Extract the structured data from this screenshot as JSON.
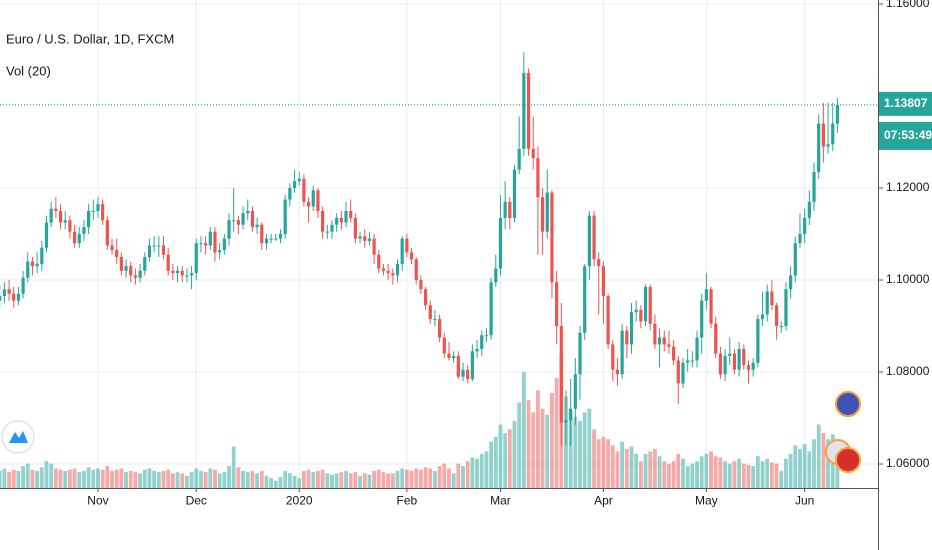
{
  "chart_data": {
    "type": "candlestick",
    "title": "Euro / U.S. Dollar, 1D, FXCM",
    "indicator": "Vol (20)",
    "up_color": "#26a69a",
    "down_color": "#ef5350",
    "grid": true,
    "ylim": [
      1.05478,
      1.16087
    ],
    "yticks": [
      {
        "value": 1.16,
        "label": "1.16000"
      },
      {
        "value": 1.12,
        "label": "1.12000"
      },
      {
        "value": 1.1,
        "label": "1.10000"
      },
      {
        "value": 1.08,
        "label": "1.08000"
      },
      {
        "value": 1.06,
        "label": "1.06000"
      }
    ],
    "xticks": [
      {
        "value": 21,
        "label": "Nov"
      },
      {
        "value": 42,
        "label": "Dec"
      },
      {
        "value": 64,
        "label": "2020"
      },
      {
        "value": 87,
        "label": "Feb"
      },
      {
        "value": 107,
        "label": "Mar"
      },
      {
        "value": 129,
        "label": "Apr"
      },
      {
        "value": 151,
        "label": "May"
      },
      {
        "value": 172,
        "label": "Jun"
      }
    ],
    "last_price": {
      "value": 1.13807,
      "label": "1.13807"
    },
    "countdown": "07:53:49",
    "volume_ylim": [
      0,
      400
    ],
    "candles": [
      [
        1.0955,
        1.099,
        1.094,
        1.0965
      ],
      [
        1.0965,
        1.0995,
        1.095,
        1.098
      ],
      [
        1.098,
        1.1,
        1.0955,
        1.097
      ],
      [
        1.097,
        1.0985,
        1.094,
        1.0955
      ],
      [
        1.0955,
        1.0985,
        1.0945,
        1.097
      ],
      [
        1.097,
        1.102,
        1.096,
        1.1005
      ],
      [
        1.1005,
        1.106,
        1.0995,
        1.104
      ],
      [
        1.104,
        1.105,
        1.101,
        1.103
      ],
      [
        1.103,
        1.106,
        1.1015,
        1.1035
      ],
      [
        1.1035,
        1.1085,
        1.102,
        1.107
      ],
      [
        1.107,
        1.114,
        1.106,
        1.1125
      ],
      [
        1.1125,
        1.117,
        1.1115,
        1.1155
      ],
      [
        1.1155,
        1.118,
        1.1135,
        1.115
      ],
      [
        1.115,
        1.1165,
        1.111,
        1.1125
      ],
      [
        1.1125,
        1.115,
        1.111,
        1.113
      ],
      [
        1.113,
        1.114,
        1.109,
        1.1105
      ],
      [
        1.1105,
        1.112,
        1.107,
        1.108
      ],
      [
        1.108,
        1.1115,
        1.107,
        1.11
      ],
      [
        1.11,
        1.113,
        1.1085,
        1.1115
      ],
      [
        1.1115,
        1.1165,
        1.11,
        1.115
      ],
      [
        1.115,
        1.1175,
        1.113,
        1.115
      ],
      [
        1.115,
        1.118,
        1.1135,
        1.1165
      ],
      [
        1.1165,
        1.1175,
        1.112,
        1.113
      ],
      [
        1.113,
        1.114,
        1.1065,
        1.1075
      ],
      [
        1.1075,
        1.109,
        1.1055,
        1.1065
      ],
      [
        1.1065,
        1.109,
        1.1035,
        1.105
      ],
      [
        1.105,
        1.106,
        1.101,
        1.102
      ],
      [
        1.102,
        1.1045,
        1.1005,
        1.103
      ],
      [
        1.103,
        1.104,
        1.0995,
        1.101
      ],
      [
        1.101,
        1.1025,
        1.099,
        1.1005
      ],
      [
        1.1005,
        1.1035,
        1.0995,
        1.102
      ],
      [
        1.102,
        1.106,
        1.101,
        1.105
      ],
      [
        1.105,
        1.109,
        1.104,
        1.1075
      ],
      [
        1.1075,
        1.1095,
        1.106,
        1.1075
      ],
      [
        1.1075,
        1.1095,
        1.105,
        1.1075
      ],
      [
        1.1075,
        1.1095,
        1.1045,
        1.1055
      ],
      [
        1.1055,
        1.107,
        1.101,
        1.102
      ],
      [
        1.102,
        1.1035,
        1.1,
        1.1015
      ],
      [
        1.1015,
        1.103,
        1.0995,
        1.102
      ],
      [
        1.102,
        1.103,
        1.0995,
        1.101
      ],
      [
        1.101,
        1.1025,
        1.0995,
        1.101
      ],
      [
        1.101,
        1.103,
        1.098,
        1.1015
      ],
      [
        1.1015,
        1.109,
        1.1,
        1.108
      ],
      [
        1.108,
        1.1095,
        1.106,
        1.108
      ],
      [
        1.108,
        1.1095,
        1.1055,
        1.1075
      ],
      [
        1.1075,
        1.1115,
        1.1065,
        1.1105
      ],
      [
        1.1105,
        1.1115,
        1.104,
        1.106
      ],
      [
        1.106,
        1.108,
        1.1045,
        1.1065
      ],
      [
        1.1065,
        1.11,
        1.1055,
        1.109
      ],
      [
        1.109,
        1.1145,
        1.1075,
        1.113
      ],
      [
        1.113,
        1.12,
        1.1105,
        1.113
      ],
      [
        1.113,
        1.114,
        1.11,
        1.112
      ],
      [
        1.112,
        1.116,
        1.111,
        1.1145
      ],
      [
        1.1145,
        1.1175,
        1.113,
        1.115
      ],
      [
        1.115,
        1.116,
        1.1105,
        1.1115
      ],
      [
        1.1115,
        1.1135,
        1.11,
        1.112
      ],
      [
        1.112,
        1.1125,
        1.1065,
        1.108
      ],
      [
        1.108,
        1.11,
        1.1065,
        1.109
      ],
      [
        1.109,
        1.11,
        1.108,
        1.109
      ],
      [
        1.109,
        1.11,
        1.1085,
        1.109
      ],
      [
        1.109,
        1.111,
        1.108,
        1.11
      ],
      [
        1.11,
        1.1185,
        1.109,
        1.1175
      ],
      [
        1.1175,
        1.121,
        1.116,
        1.12
      ],
      [
        1.12,
        1.124,
        1.119,
        1.1215
      ],
      [
        1.1215,
        1.1235,
        1.1205,
        1.122
      ],
      [
        1.122,
        1.123,
        1.116,
        1.117
      ],
      [
        1.117,
        1.118,
        1.1125,
        1.116
      ],
      [
        1.116,
        1.1205,
        1.115,
        1.1195
      ],
      [
        1.1195,
        1.12,
        1.1135,
        1.115
      ],
      [
        1.115,
        1.116,
        1.109,
        1.1105
      ],
      [
        1.1105,
        1.112,
        1.109,
        1.1105
      ],
      [
        1.1105,
        1.113,
        1.109,
        1.112
      ],
      [
        1.112,
        1.1145,
        1.1105,
        1.1135
      ],
      [
        1.1135,
        1.115,
        1.111,
        1.1125
      ],
      [
        1.1125,
        1.117,
        1.1115,
        1.115
      ],
      [
        1.115,
        1.1175,
        1.1125,
        1.1135
      ],
      [
        1.1135,
        1.1145,
        1.108,
        1.109
      ],
      [
        1.109,
        1.1105,
        1.108,
        1.1095
      ],
      [
        1.1095,
        1.111,
        1.107,
        1.1085
      ],
      [
        1.1085,
        1.1105,
        1.1075,
        1.109
      ],
      [
        1.109,
        1.11,
        1.1035,
        1.1055
      ],
      [
        1.1055,
        1.1065,
        1.1015,
        1.1025
      ],
      [
        1.1025,
        1.1035,
        1.101,
        1.102
      ],
      [
        1.102,
        1.1035,
        1.1,
        1.1015
      ],
      [
        1.1015,
        1.1025,
        1.099,
        1.101
      ],
      [
        1.101,
        1.1045,
        1.0995,
        1.1035
      ],
      [
        1.1035,
        1.1095,
        1.102,
        1.109
      ],
      [
        1.109,
        1.11,
        1.105,
        1.106
      ],
      [
        1.106,
        1.107,
        1.1035,
        1.1045
      ],
      [
        1.1045,
        1.105,
        1.099,
        1.1
      ],
      [
        1.1,
        1.101,
        1.097,
        1.098
      ],
      [
        1.098,
        1.0985,
        1.0935,
        1.0945
      ],
      [
        1.0945,
        1.0955,
        1.0905,
        1.0915
      ],
      [
        1.0915,
        1.0935,
        1.09,
        1.0915
      ],
      [
        1.0915,
        1.0925,
        1.0865,
        1.0875
      ],
      [
        1.0875,
        1.0885,
        1.083,
        1.084
      ],
      [
        1.084,
        1.0865,
        1.0825,
        1.083
      ],
      [
        1.083,
        1.0845,
        1.082,
        1.0835
      ],
      [
        1.0835,
        1.0845,
        1.0785,
        1.079
      ],
      [
        1.079,
        1.082,
        1.078,
        1.0805
      ],
      [
        1.0805,
        1.0815,
        1.0775,
        1.0785
      ],
      [
        1.0785,
        1.086,
        1.078,
        1.0845
      ],
      [
        1.0845,
        1.087,
        1.083,
        1.085
      ],
      [
        1.085,
        1.089,
        1.0835,
        1.088
      ],
      [
        1.088,
        1.0895,
        1.0865,
        1.088
      ],
      [
        1.088,
        1.1005,
        1.087,
        1.0995
      ],
      [
        1.0995,
        1.1055,
        1.0985,
        1.1025
      ],
      [
        1.1025,
        1.1185,
        1.101,
        1.1135
      ],
      [
        1.1135,
        1.1215,
        1.111,
        1.117
      ],
      [
        1.117,
        1.118,
        1.111,
        1.1135
      ],
      [
        1.1135,
        1.125,
        1.1125,
        1.124
      ],
      [
        1.124,
        1.1355,
        1.123,
        1.1285
      ],
      [
        1.1285,
        1.1495,
        1.127,
        1.145
      ],
      [
        1.145,
        1.146,
        1.127,
        1.1285
      ],
      [
        1.1285,
        1.1355,
        1.124,
        1.1265
      ],
      [
        1.1265,
        1.129,
        1.1055,
        1.118
      ],
      [
        1.118,
        1.12,
        1.1055,
        1.1105
      ],
      [
        1.1105,
        1.124,
        1.109,
        1.119
      ],
      [
        1.119,
        1.1195,
        1.096,
        1.0995
      ],
      [
        1.0995,
        1.102,
        1.086,
        1.09
      ],
      [
        1.09,
        1.095,
        1.064,
        1.069
      ],
      [
        1.069,
        1.076,
        1.064,
        1.0695
      ],
      [
        1.0695,
        1.0785,
        1.064,
        1.072
      ],
      [
        1.072,
        1.083,
        1.0685,
        1.0795
      ],
      [
        1.0795,
        1.09,
        1.074,
        1.0885
      ],
      [
        1.0885,
        1.1035,
        1.087,
        1.103
      ],
      [
        1.103,
        1.115,
        1.1,
        1.114
      ],
      [
        1.114,
        1.115,
        1.103,
        1.1045
      ],
      [
        1.1045,
        1.106,
        1.0925,
        1.103
      ],
      [
        1.103,
        1.104,
        1.0905,
        1.0965
      ],
      [
        1.0965,
        1.097,
        1.085,
        1.086
      ],
      [
        1.086,
        1.087,
        1.078,
        1.0805
      ],
      [
        1.0805,
        1.083,
        1.077,
        1.0795
      ],
      [
        1.0795,
        1.0905,
        1.0785,
        1.089
      ],
      [
        1.089,
        1.09,
        1.083,
        1.086
      ],
      [
        1.086,
        1.095,
        1.084,
        1.093
      ],
      [
        1.093,
        1.0955,
        1.091,
        1.0935
      ],
      [
        1.0935,
        1.0945,
        1.0895,
        1.091
      ],
      [
        1.091,
        1.099,
        1.09,
        1.0985
      ],
      [
        1.0985,
        1.099,
        1.089,
        1.0905
      ],
      [
        1.0905,
        1.0925,
        1.085,
        1.086
      ],
      [
        1.086,
        1.0895,
        1.081,
        1.0875
      ],
      [
        1.0875,
        1.089,
        1.0845,
        1.086
      ],
      [
        1.086,
        1.089,
        1.084,
        1.0855
      ],
      [
        1.0855,
        1.087,
        1.0815,
        1.0825
      ],
      [
        1.0825,
        1.0835,
        1.073,
        1.0775
      ],
      [
        1.0775,
        1.083,
        1.0765,
        1.082
      ],
      [
        1.082,
        1.085,
        1.08,
        1.0825
      ],
      [
        1.0825,
        1.0845,
        1.081,
        1.0825
      ],
      [
        1.0825,
        1.089,
        1.081,
        1.0875
      ],
      [
        1.0875,
        1.097,
        1.084,
        1.0955
      ],
      [
        1.0955,
        1.1015,
        1.0935,
        1.098
      ],
      [
        1.098,
        1.0985,
        1.0895,
        1.0905
      ],
      [
        1.0905,
        1.092,
        1.083,
        1.084
      ],
      [
        1.084,
        1.0855,
        1.0785,
        1.0795
      ],
      [
        1.0795,
        1.085,
        1.078,
        1.0835
      ],
      [
        1.0835,
        1.0875,
        1.0815,
        1.084
      ],
      [
        1.084,
        1.085,
        1.0795,
        1.0805
      ],
      [
        1.0805,
        1.0865,
        1.079,
        1.085
      ],
      [
        1.085,
        1.086,
        1.0805,
        1.0815
      ],
      [
        1.0815,
        1.0825,
        1.0775,
        1.0805
      ],
      [
        1.0805,
        1.083,
        1.079,
        1.082
      ],
      [
        1.082,
        1.0925,
        1.081,
        1.0915
      ],
      [
        1.0915,
        1.0975,
        1.09,
        1.0925
      ],
      [
        1.0925,
        1.099,
        1.091,
        1.0975
      ],
      [
        1.0975,
        1.1,
        1.0935,
        1.0945
      ],
      [
        1.0945,
        1.095,
        1.087,
        1.09
      ],
      [
        1.09,
        1.091,
        1.0885,
        1.09
      ],
      [
        1.09,
        1.0995,
        1.089,
        1.098
      ],
      [
        1.098,
        1.103,
        1.096,
        1.101
      ],
      [
        1.101,
        1.1095,
        1.0995,
        1.108
      ],
      [
        1.108,
        1.1145,
        1.107,
        1.11
      ],
      [
        1.11,
        1.1155,
        1.108,
        1.1135
      ],
      [
        1.1135,
        1.1195,
        1.112,
        1.117
      ],
      [
        1.117,
        1.1255,
        1.115,
        1.1235
      ],
      [
        1.1235,
        1.136,
        1.122,
        1.134
      ],
      [
        1.134,
        1.1385,
        1.1255,
        1.129
      ],
      [
        1.129,
        1.1385,
        1.1275,
        1.1295
      ],
      [
        1.1295,
        1.1385,
        1.128,
        1.134
      ],
      [
        1.134,
        1.1395,
        1.132,
        1.13807
      ]
    ],
    "volume": [
      14,
      16,
      13,
      15,
      14,
      18,
      20,
      15,
      14,
      17,
      22,
      20,
      16,
      15,
      14,
      15,
      16,
      13,
      14,
      17,
      15,
      16,
      15,
      18,
      14,
      15,
      16,
      13,
      14,
      13,
      12,
      15,
      16,
      14,
      13,
      14,
      15,
      12,
      13,
      12,
      10,
      13,
      16,
      14,
      13,
      16,
      15,
      12,
      13,
      18,
      34,
      17,
      14,
      13,
      14,
      12,
      14,
      10,
      8,
      6,
      9,
      14,
      12,
      10,
      8,
      14,
      15,
      13,
      14,
      15,
      12,
      11,
      12,
      13,
      14,
      12,
      13,
      10,
      12,
      11,
      14,
      15,
      13,
      12,
      12,
      14,
      16,
      15,
      14,
      16,
      15,
      17,
      16,
      14,
      18,
      20,
      16,
      12,
      20,
      18,
      22,
      25,
      24,
      28,
      30,
      38,
      42,
      52,
      45,
      48,
      55,
      70,
      95,
      72,
      62,
      80,
      65,
      60,
      78,
      90,
      110,
      75,
      62,
      58,
      55,
      62,
      65,
      48,
      40,
      42,
      40,
      35,
      30,
      38,
      32,
      34,
      28,
      22,
      28,
      30,
      32,
      26,
      22,
      20,
      22,
      28,
      24,
      18,
      20,
      22,
      26,
      28,
      30,
      26,
      25,
      22,
      20,
      22,
      24,
      20,
      19,
      18,
      26,
      22,
      24,
      21,
      20,
      14,
      24,
      28,
      35,
      32,
      36,
      30,
      40,
      52,
      45,
      40,
      44,
      34
    ]
  }
}
